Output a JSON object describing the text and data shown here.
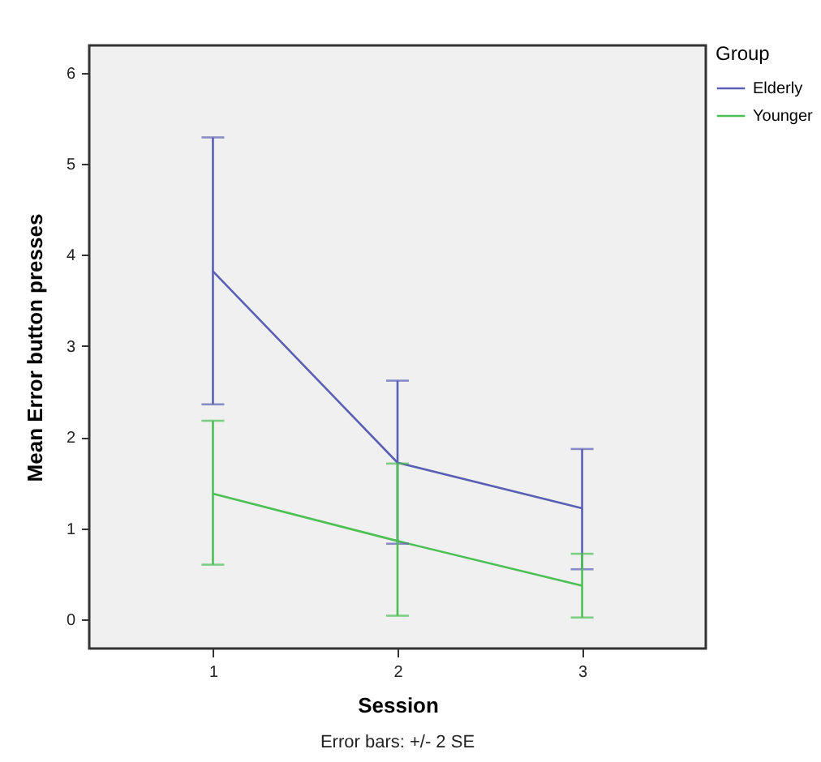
{
  "chart_data": {
    "type": "line",
    "xlabel": "Session",
    "ylabel": "Mean Error button presses",
    "legend_title": "Group",
    "categories": [
      "1",
      "2",
      "3"
    ],
    "ylim": [
      -0.32,
      6.3
    ],
    "yticks": [
      0,
      1,
      2,
      3,
      4,
      5,
      6
    ],
    "legend": "top right",
    "annotations": [
      "Error bars: +/- 2 SE"
    ],
    "series": [
      {
        "name": "Elderly",
        "color": "#5b5fb3",
        "values": [
          3.82,
          1.72,
          1.22
        ],
        "errors": [
          [
            2.36,
            5.29
          ],
          [
            0.83,
            2.62
          ],
          [
            0.55,
            1.87
          ]
        ]
      },
      {
        "name": "Younger",
        "color": "#4cbf55",
        "values": [
          1.38,
          0.86,
          0.37
        ],
        "errors": [
          [
            0.6,
            2.18
          ],
          [
            0.04,
            1.71
          ],
          [
            0.02,
            0.72
          ]
        ]
      }
    ]
  }
}
